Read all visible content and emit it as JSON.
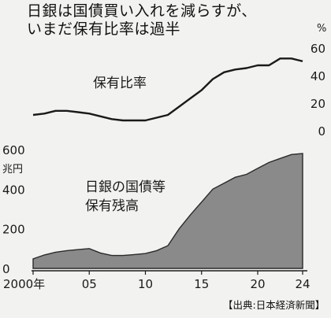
{
  "title": [
    "日銀は国債買い入れを減らすが、",
    "いまだ保有比率は過半"
  ],
  "source": "【出典:日本経済新聞】",
  "chart_data": [
    {
      "type": "line",
      "label": "保有比率",
      "unit": "%",
      "ylim": [
        0,
        60
      ],
      "yticks": [
        0,
        20,
        40,
        60
      ],
      "axis_side": "right",
      "x": [
        2000,
        2001,
        2002,
        2003,
        2004,
        2005,
        2006,
        2007,
        2008,
        2009,
        2010,
        2011,
        2012,
        2013,
        2014,
        2015,
        2016,
        2017,
        2018,
        2019,
        2020,
        2021,
        2022,
        2023,
        2024
      ],
      "values": [
        12,
        13,
        15,
        15,
        14,
        13,
        11,
        9,
        8,
        8,
        8,
        10,
        12,
        18,
        24,
        30,
        38,
        43,
        45,
        46,
        48,
        48,
        53,
        53,
        51
      ]
    },
    {
      "type": "area",
      "label": [
        "日銀の国債等",
        "保有残高"
      ],
      "unit": "兆円",
      "ylim": [
        0,
        600
      ],
      "yticks": [
        0,
        200,
        400,
        600
      ],
      "axis_side": "left",
      "x": [
        2000,
        2001,
        2002,
        2003,
        2004,
        2005,
        2006,
        2007,
        2008,
        2009,
        2010,
        2011,
        2012,
        2013,
        2014,
        2015,
        2016,
        2017,
        2018,
        2019,
        2020,
        2021,
        2022,
        2023,
        2024
      ],
      "values": [
        48,
        68,
        82,
        90,
        95,
        100,
        78,
        65,
        65,
        70,
        75,
        90,
        115,
        200,
        270,
        335,
        400,
        430,
        460,
        475,
        505,
        535,
        555,
        575,
        580
      ]
    }
  ],
  "xaxis": {
    "ticks": [
      {
        "value": 2000,
        "label": "2000年"
      },
      {
        "value": 2005,
        "label": "05"
      },
      {
        "value": 2010,
        "label": "10"
      },
      {
        "value": 2015,
        "label": "15"
      },
      {
        "value": 2020,
        "label": "20"
      },
      {
        "value": 2024,
        "label": "24"
      }
    ]
  },
  "colors": {
    "line": "#1a1a1a",
    "area": "#8a8a8a",
    "background": "#f2f2f0"
  }
}
